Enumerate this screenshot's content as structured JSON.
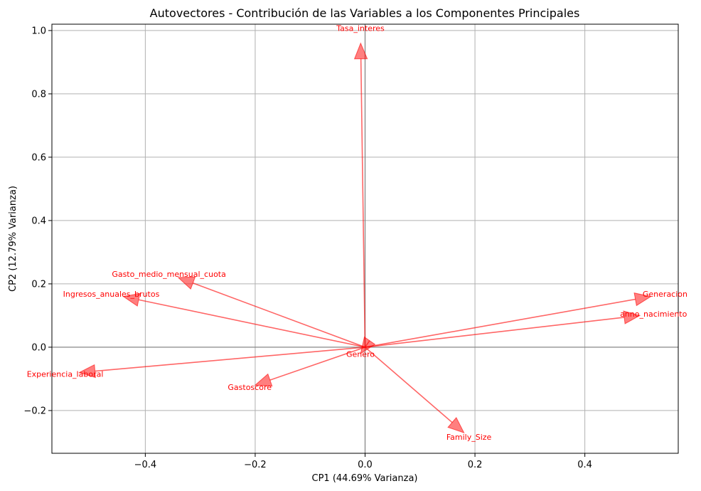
{
  "chart_data": {
    "type": "biplot",
    "title": "Autovectores - Contribución de las Variables a los Componentes Principales",
    "xlabel": "CP1 (44.69% Varianza)",
    "ylabel": "CP2 (12.79% Varianza)",
    "xlim": [
      -0.57,
      0.57
    ],
    "ylim": [
      -0.335,
      1.02
    ],
    "xticks": [
      -0.4,
      -0.2,
      0.0,
      0.2,
      0.4
    ],
    "xtick_labels": [
      "−0.4",
      "−0.2",
      "0.0",
      "0.2",
      "0.4"
    ],
    "yticks": [
      -0.2,
      0.0,
      0.2,
      0.4,
      0.6,
      0.8,
      1.0
    ],
    "ytick_labels": [
      "−0.2",
      "0.0",
      "0.2",
      "0.4",
      "0.6",
      "0.8",
      "1.0"
    ],
    "grid": true,
    "arrow_color": "#ff0000",
    "label_color": "#ff0000",
    "vectors": [
      {
        "label": "Tasa_interes",
        "x": -0.008,
        "y": 0.96
      },
      {
        "label": "Gasto_medio_mensual_cuota",
        "x": -0.34,
        "y": 0.22
      },
      {
        "label": "Ingresos_anuales_brutos",
        "x": -0.44,
        "y": 0.16
      },
      {
        "label": "Generacion",
        "x": 0.52,
        "y": 0.16
      },
      {
        "label": "anno_nacimiento",
        "x": 0.5,
        "y": 0.1
      },
      {
        "label": "Experiencia_laboral",
        "x": -0.52,
        "y": -0.08
      },
      {
        "label": "Genero",
        "x": -0.008,
        "y": -0.02
      },
      {
        "label": "Gastoscore",
        "x": -0.2,
        "y": -0.12
      },
      {
        "label": "Family_Size",
        "x": 0.18,
        "y": -0.27
      }
    ]
  }
}
